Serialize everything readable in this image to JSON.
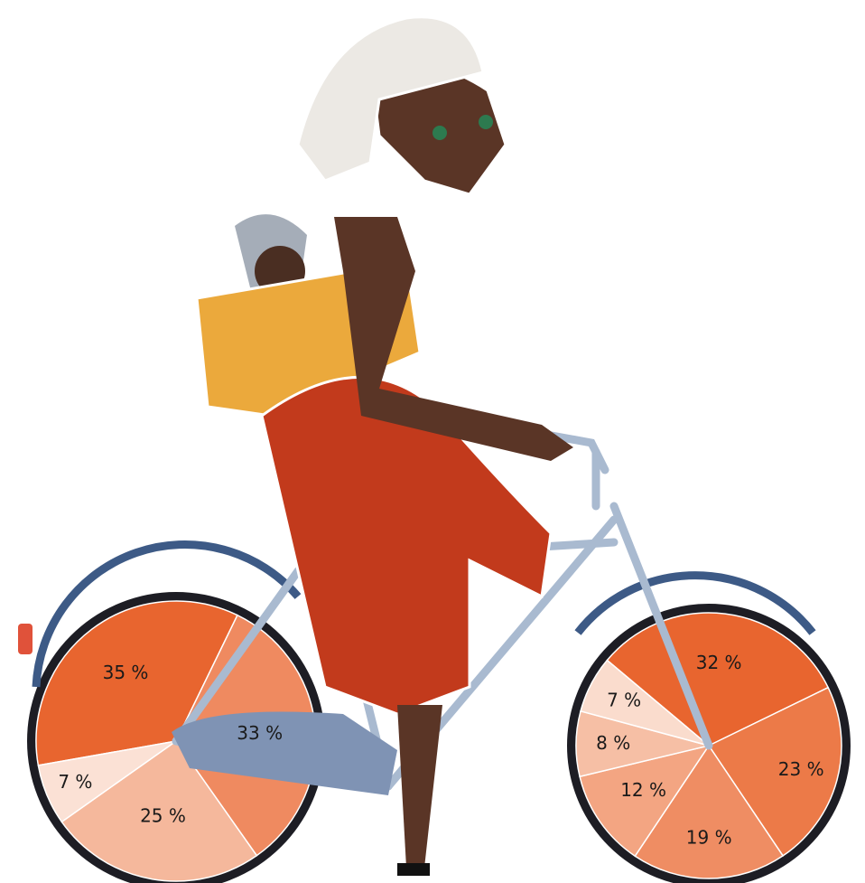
{
  "chart_data": [
    {
      "type": "pie",
      "values": [
        35,
        33,
        25,
        7
      ],
      "value_labels": [
        "35 %",
        "33 %",
        "25 %",
        "7 %"
      ],
      "colors": [
        "#e8652f",
        "#ef8a60",
        "#f5b89c",
        "#fbe1d5"
      ]
    },
    {
      "type": "pie",
      "values": [
        32,
        23,
        19,
        12,
        8,
        7
      ],
      "value_labels": [
        "32 %",
        "23 %",
        "19 %",
        "12 %",
        "8 %",
        "7 %"
      ],
      "colors": [
        "#e8652f",
        "#ec7a48",
        "#ef8d63",
        "#f3a582",
        "#f6bfa5",
        "#fadccd"
      ]
    }
  ]
}
